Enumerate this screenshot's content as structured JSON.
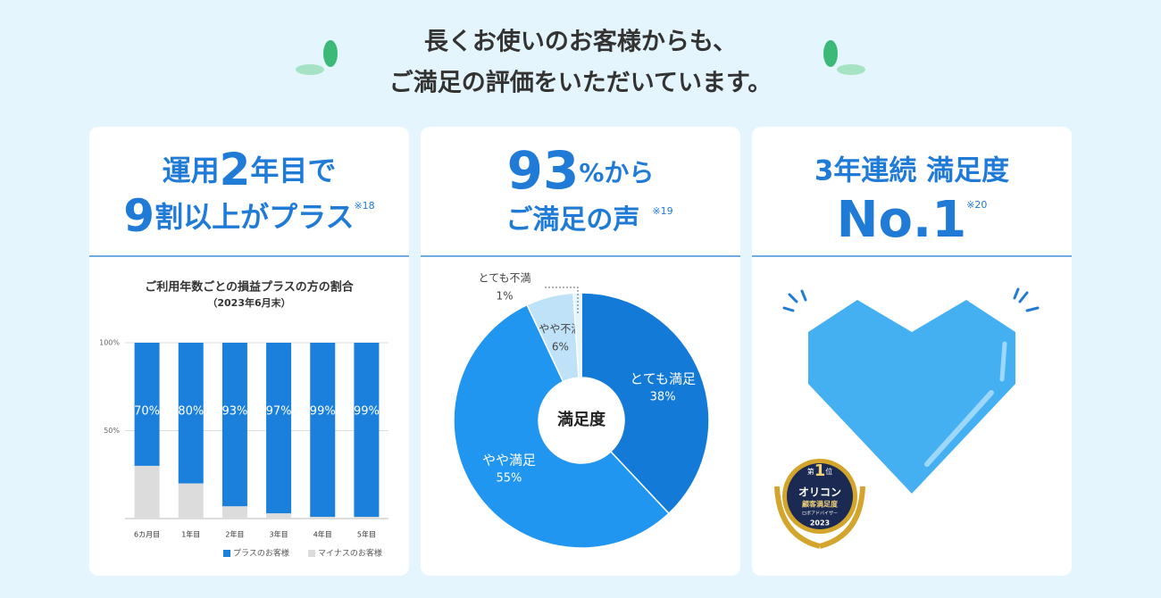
{
  "heading": {
    "lines": [
      "長くお使いのお客様からも、",
      "ご満足の評価をいただいています。"
    ]
  },
  "cards": [
    {
      "title": {
        "line1": [
          "運用",
          "2",
          "年目で"
        ],
        "line2": [
          "9",
          "割以上がプラス"
        ],
        "note": "※18"
      },
      "chart_data": {
        "type": "bar",
        "title": "ご利用年数ごとの損益プラスの方の割合",
        "subtitle": "（2023年6月末）",
        "categories": [
          "6カ月目",
          "1年目",
          "2年目",
          "3年目",
          "4年目",
          "5年目"
        ],
        "series": [
          {
            "name": "マイナスのお客様",
            "color": "#dcdcdc",
            "values": [
              30,
              20,
              7,
              3,
              1,
              1
            ]
          },
          {
            "name": "プラスのお客様",
            "color": "#1a80dc",
            "values": [
              70,
              80,
              93,
              97,
              99,
              99
            ],
            "value_labels": [
              "70%",
              "80%",
              "93%",
              "97%",
              "99%",
              "99%"
            ]
          }
        ],
        "ylim": [
          0,
          100
        ],
        "yticks": [
          {
            "value": 50,
            "label": "50%"
          },
          {
            "value": 100,
            "label": "100%"
          }
        ],
        "grid": true
      }
    },
    {
      "title": {
        "line1": [
          "93",
          "%から"
        ],
        "line2": [
          "ご満足の声"
        ],
        "note": "※19"
      },
      "chart_data": {
        "type": "pie",
        "center_label": "満足度",
        "categories": [
          "とても満足",
          "やや満足",
          "やや不満",
          "とても不満"
        ],
        "values": [
          38,
          55,
          6,
          1
        ],
        "value_labels": [
          "38%",
          "55%",
          "6%",
          "1%"
        ],
        "colors": [
          "#137ad8",
          "#2196f0",
          "#bfe2f8",
          "#e6f4fd"
        ]
      }
    },
    {
      "title": {
        "line1": [
          "3年連続 満足度"
        ],
        "line2": [
          "No.1"
        ],
        "note": "※20"
      },
      "badge": {
        "rank_prefix": "第",
        "rank": "1",
        "rank_suffix": "位",
        "brand": "オリコン",
        "award": "顧客満足度",
        "category": "ロボアドバイザー",
        "year": "2023"
      }
    }
  ]
}
